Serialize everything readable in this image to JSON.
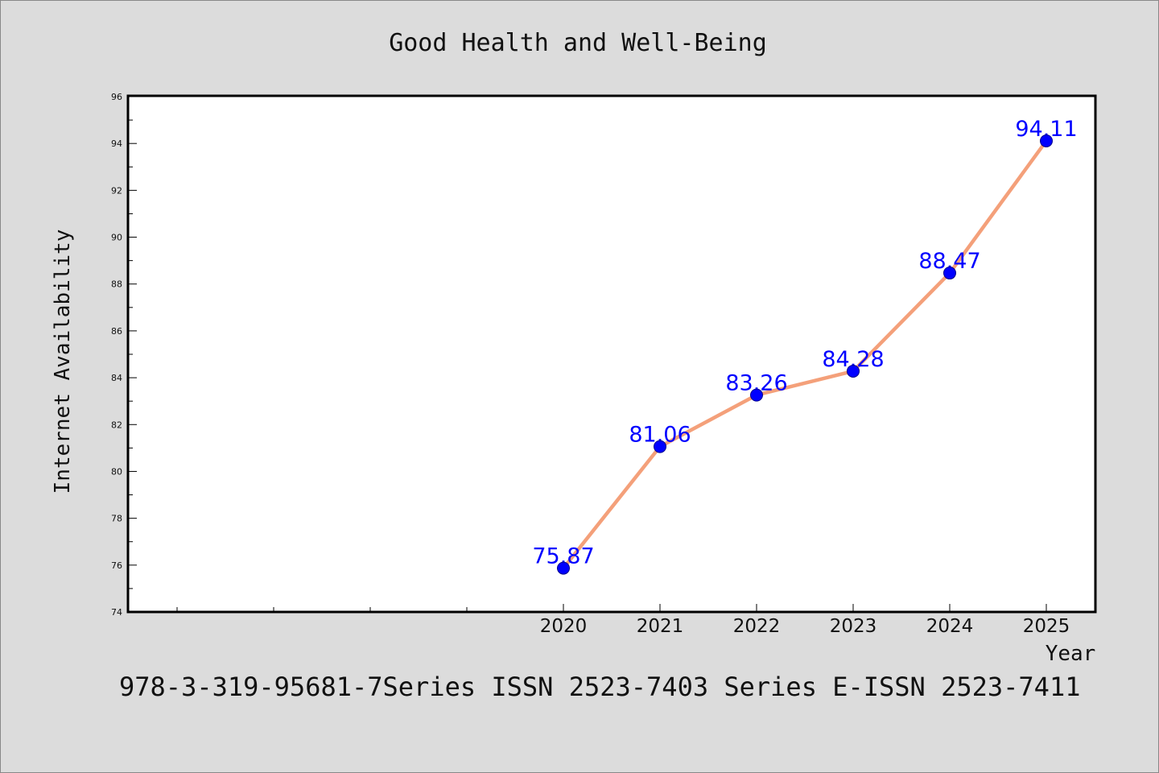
{
  "chart_data": {
    "type": "line",
    "title": "Good Health and Well-Being",
    "xlabel": "Year",
    "ylabel": "Internet Availability",
    "x": [
      "2020",
      "2021",
      "2022",
      "2023",
      "2024",
      "2025"
    ],
    "series": [
      {
        "values": [
          75.87,
          81.06,
          83.26,
          84.28,
          88.47,
          94.11
        ]
      }
    ],
    "data_labels": [
      "75.87",
      "81.06",
      "83.26",
      "84.28",
      "88.47",
      "94.11"
    ],
    "ylim": [
      74,
      96
    ],
    "yticks": [
      "74",
      "76",
      "78",
      "80",
      "82",
      "84",
      "86",
      "88",
      "90",
      "92",
      "94",
      "96"
    ],
    "grid": false,
    "legend": "none",
    "colors": {
      "line": "#f4a07a",
      "marker": "#0000ff",
      "label": "#0000ff",
      "background": "#dcdcdc",
      "plot_area": "#ffffff"
    }
  },
  "footer_text": "978-3-319-95681-7Series ISSN 2523-7403 Series E-ISSN 2523-7411"
}
